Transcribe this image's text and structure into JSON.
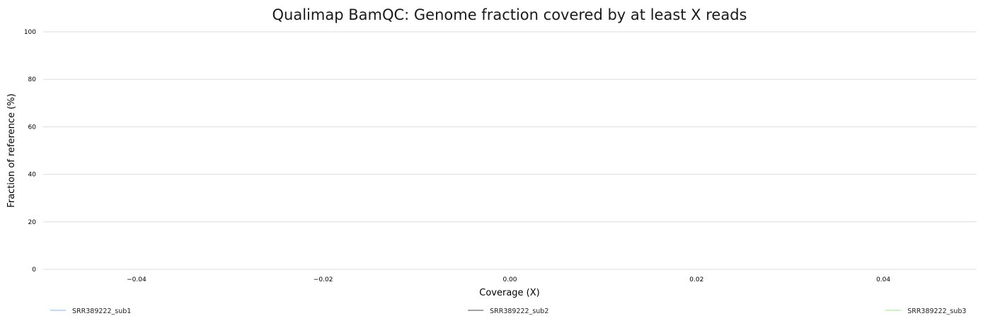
{
  "chart_data": {
    "type": "line",
    "title": "Qualimap BamQC: Genome fraction covered by at least X reads",
    "xlabel": "Coverage (X)",
    "ylabel": "Fraction of reference (%)",
    "xlim": [
      -0.05,
      0.05
    ],
    "ylim": [
      0,
      100
    ],
    "x_ticks": [
      -0.04,
      -0.02,
      0.0,
      0.02,
      0.04
    ],
    "x_tick_labels": [
      "−0.04",
      "−0.02",
      "0.00",
      "0.02",
      "0.04"
    ],
    "y_ticks": [
      0,
      20,
      40,
      60,
      80,
      100
    ],
    "y_tick_labels": [
      "0",
      "20",
      "40",
      "60",
      "80",
      "100"
    ],
    "grid": "horizontal",
    "legend_position": "bottom",
    "series": [
      {
        "name": "SRR389222_sub1",
        "color": "#7cb5ec",
        "x": [],
        "y": []
      },
      {
        "name": "SRR389222_sub2",
        "color": "#434348",
        "x": [],
        "y": []
      },
      {
        "name": "SRR389222_sub3",
        "color": "#90ed7d",
        "x": [],
        "y": []
      }
    ]
  }
}
